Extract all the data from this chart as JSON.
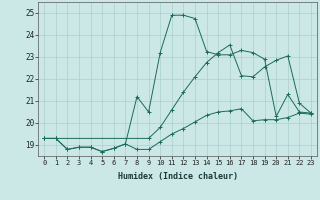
{
  "xlabel": "Humidex (Indice chaleur)",
  "background_color": "#cce8e6",
  "grid_color": "#aacfcd",
  "line_color": "#1a6b5a",
  "xlim": [
    -0.5,
    23.5
  ],
  "ylim": [
    18.5,
    25.5
  ],
  "yticks": [
    19,
    20,
    21,
    22,
    23,
    24,
    25
  ],
  "xticks": [
    0,
    1,
    2,
    3,
    4,
    5,
    6,
    7,
    8,
    9,
    10,
    11,
    12,
    13,
    14,
    15,
    16,
    17,
    18,
    19,
    20,
    21,
    22,
    23
  ],
  "series1_x": [
    0,
    1,
    2,
    3,
    4,
    5,
    6,
    7,
    8,
    9,
    10,
    11,
    12,
    13,
    14,
    15,
    16,
    17,
    18,
    19,
    20,
    21,
    22,
    23
  ],
  "series1_y": [
    19.3,
    19.3,
    18.8,
    18.9,
    18.9,
    18.7,
    18.85,
    19.05,
    18.8,
    18.8,
    19.15,
    19.5,
    19.75,
    20.05,
    20.35,
    20.5,
    20.55,
    20.65,
    20.1,
    20.15,
    20.15,
    20.25,
    20.45,
    20.4
  ],
  "series2_x": [
    0,
    1,
    2,
    3,
    4,
    5,
    6,
    7,
    8,
    9,
    10,
    11,
    12,
    13,
    14,
    15,
    16,
    17,
    18,
    19,
    20,
    21,
    22,
    23
  ],
  "series2_y": [
    19.3,
    19.3,
    18.8,
    18.9,
    18.9,
    18.7,
    18.85,
    19.05,
    21.2,
    20.5,
    23.2,
    24.9,
    24.9,
    24.75,
    23.25,
    23.1,
    23.1,
    23.3,
    23.2,
    22.9,
    20.3,
    21.3,
    20.5,
    20.45
  ],
  "series3_x": [
    0,
    1,
    9,
    10,
    11,
    12,
    13,
    14,
    15,
    16,
    17,
    18,
    19,
    20,
    21,
    22,
    23
  ],
  "series3_y": [
    19.3,
    19.3,
    19.3,
    19.8,
    20.6,
    21.4,
    22.1,
    22.75,
    23.2,
    23.55,
    22.15,
    22.1,
    22.55,
    22.85,
    23.05,
    20.9,
    20.45
  ]
}
